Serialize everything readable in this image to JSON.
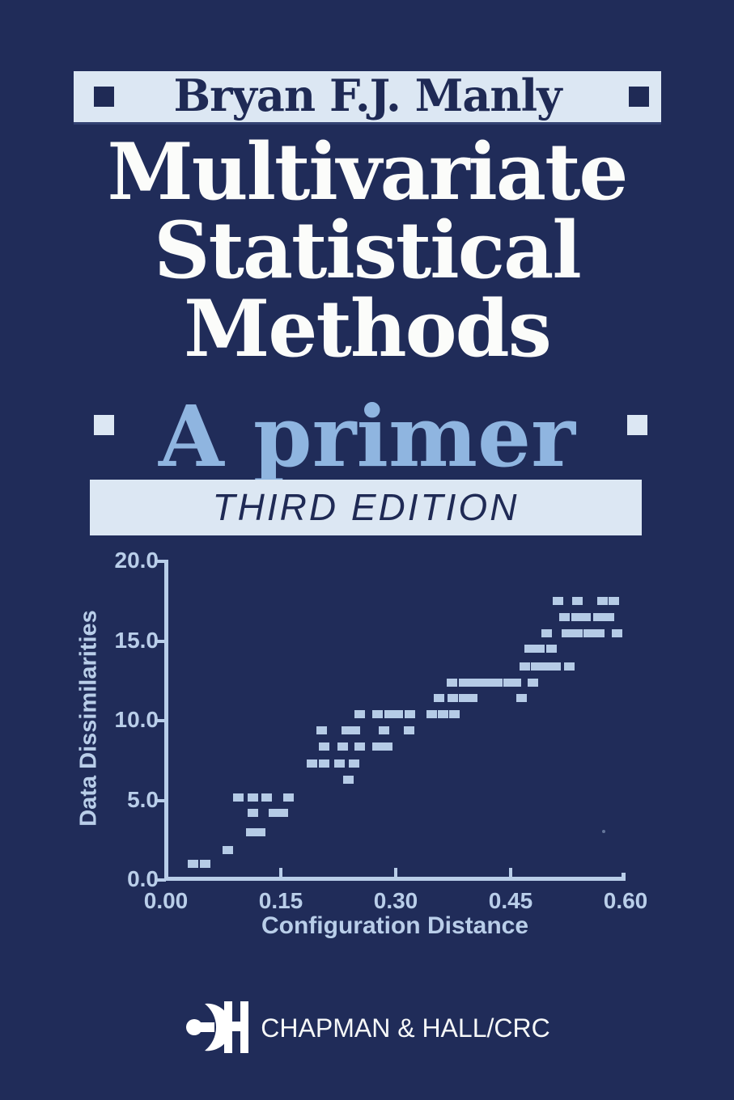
{
  "cover": {
    "author": "Bryan F.J. Manly",
    "title_lines": [
      "Multivariate",
      "Statistical",
      "Methods"
    ],
    "subtitle": "A primer",
    "edition": "THIRD EDITION",
    "publisher": "CHAPMAN & HALL/CRC",
    "logo_monogram": "CH"
  },
  "colors": {
    "background": "#202c59",
    "banner": "#dce7f3",
    "navy_text": "#1f2a55",
    "title_text": "#fbfcfa",
    "subtitle_text": "#8fb5e0",
    "chart": "#b9cee9",
    "marker": "#b5cbe6",
    "publisher_text": "#f6f8f8"
  },
  "chart_data": {
    "type": "scatter",
    "title": "",
    "xlabel": "Configuration Distance",
    "ylabel": "Data Dissimilarities",
    "xlim": [
      0.0,
      0.6
    ],
    "ylim": [
      0.0,
      20.0
    ],
    "grid": false,
    "legend": "none",
    "marker_shape": "square",
    "x_ticks": [
      0.0,
      0.15,
      0.3,
      0.45,
      0.6
    ],
    "x_tick_labels": [
      "0.00",
      "0.15",
      "0.30",
      "0.45",
      "0.60"
    ],
    "y_ticks": [
      20,
      15,
      10,
      5,
      0
    ],
    "y_tick_labels": [
      "20.0",
      "15.0",
      "10.0",
      "5.0",
      "0.0"
    ],
    "points": [
      [
        0.035,
        1.0
      ],
      [
        0.051,
        1.0
      ],
      [
        0.081,
        1.9
      ],
      [
        0.111,
        3.0
      ],
      [
        0.123,
        3.0
      ],
      [
        0.114,
        4.2
      ],
      [
        0.141,
        4.2
      ],
      [
        0.153,
        4.2
      ],
      [
        0.095,
        5.2
      ],
      [
        0.114,
        5.2
      ],
      [
        0.131,
        5.2
      ],
      [
        0.16,
        5.2
      ],
      [
        0.238,
        6.3
      ],
      [
        0.191,
        7.3
      ],
      [
        0.206,
        7.3
      ],
      [
        0.227,
        7.3
      ],
      [
        0.246,
        7.3
      ],
      [
        0.207,
        8.4
      ],
      [
        0.231,
        8.4
      ],
      [
        0.253,
        8.4
      ],
      [
        0.276,
        8.4
      ],
      [
        0.289,
        8.4
      ],
      [
        0.203,
        9.4
      ],
      [
        0.236,
        9.4
      ],
      [
        0.247,
        9.4
      ],
      [
        0.285,
        9.4
      ],
      [
        0.317,
        9.4
      ],
      [
        0.253,
        10.4
      ],
      [
        0.276,
        10.4
      ],
      [
        0.292,
        10.4
      ],
      [
        0.303,
        10.4
      ],
      [
        0.319,
        10.4
      ],
      [
        0.347,
        10.4
      ],
      [
        0.362,
        10.4
      ],
      [
        0.377,
        10.4
      ],
      [
        0.357,
        11.4
      ],
      [
        0.374,
        11.4
      ],
      [
        0.389,
        11.4
      ],
      [
        0.4,
        11.4
      ],
      [
        0.464,
        11.4
      ],
      [
        0.373,
        12.4
      ],
      [
        0.389,
        12.4
      ],
      [
        0.4,
        12.4
      ],
      [
        0.412,
        12.4
      ],
      [
        0.423,
        12.4
      ],
      [
        0.433,
        12.4
      ],
      [
        0.447,
        12.4
      ],
      [
        0.457,
        12.4
      ],
      [
        0.479,
        12.4
      ],
      [
        0.469,
        13.4
      ],
      [
        0.483,
        13.4
      ],
      [
        0.497,
        13.4
      ],
      [
        0.509,
        13.4
      ],
      [
        0.527,
        13.4
      ],
      [
        0.475,
        14.5
      ],
      [
        0.488,
        14.5
      ],
      [
        0.503,
        14.5
      ],
      [
        0.497,
        15.5
      ],
      [
        0.523,
        15.5
      ],
      [
        0.537,
        15.5
      ],
      [
        0.552,
        15.5
      ],
      [
        0.566,
        15.5
      ],
      [
        0.589,
        15.5
      ],
      [
        0.52,
        16.5
      ],
      [
        0.536,
        16.5
      ],
      [
        0.548,
        16.5
      ],
      [
        0.565,
        16.5
      ],
      [
        0.578,
        16.5
      ],
      [
        0.512,
        17.5
      ],
      [
        0.537,
        17.5
      ],
      [
        0.57,
        17.5
      ],
      [
        0.585,
        17.5
      ]
    ]
  }
}
